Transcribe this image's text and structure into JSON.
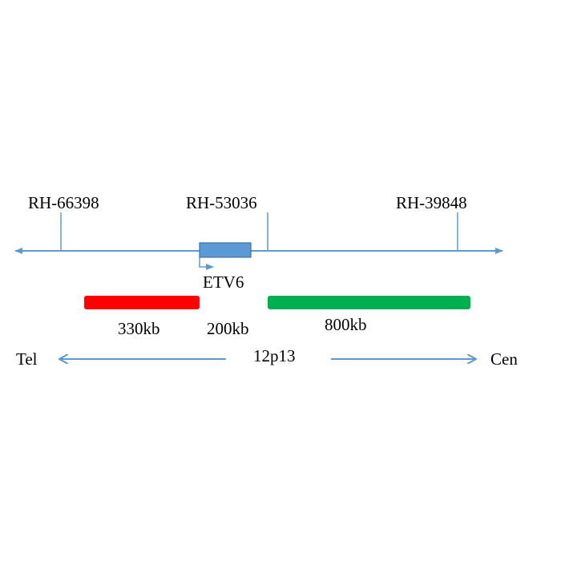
{
  "markers": [
    {
      "label": "RH-66398"
    },
    {
      "label": "RH-53036"
    },
    {
      "label": "RH-39848"
    }
  ],
  "gene": {
    "label": "ETV6"
  },
  "probes": [
    {
      "label": "330kb",
      "color": "#ff0000"
    },
    {
      "label": "200kb"
    },
    {
      "label": "800kb",
      "color": "#00b050"
    }
  ],
  "orientation": {
    "left": "Tel",
    "center": "12p13",
    "right": "Cen"
  },
  "colors": {
    "line": "#5b9bd5",
    "gene_fill": "#5b9bd5",
    "gene_border": "#41719c"
  }
}
